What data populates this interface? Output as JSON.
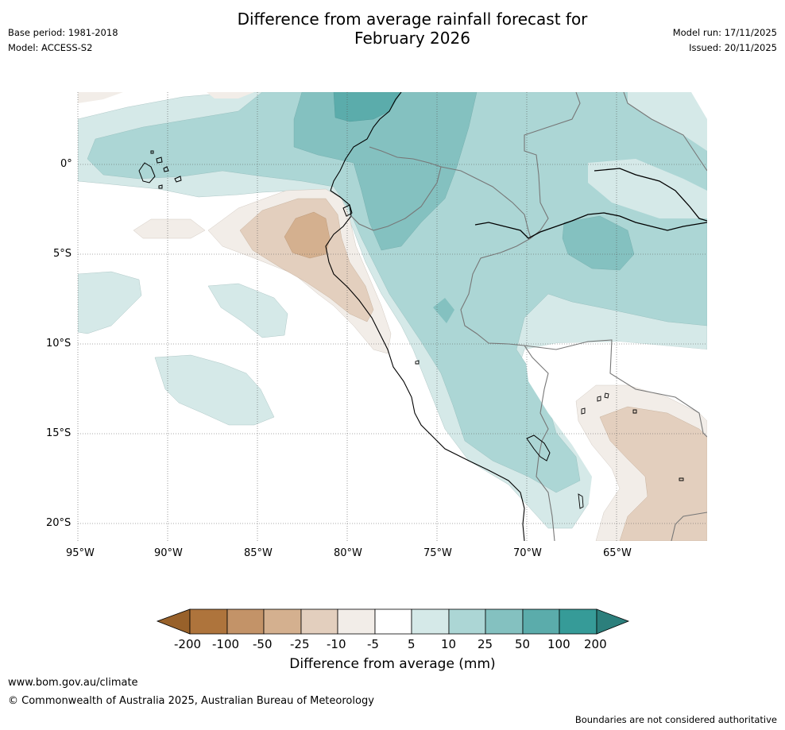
{
  "title": {
    "line1": "Difference from average rainfall forecast for",
    "line2": "February 2026"
  },
  "meta": {
    "base_period": "Base period: 1981-2018",
    "model": "Model: ACCESS-S2",
    "model_run": "Model run: 17/11/2025",
    "issued": "Issued: 20/11/2025"
  },
  "map": {
    "region": "Western South America (Peru, Ecuador)",
    "lat_labels": [
      "0°",
      "5°S",
      "10°S",
      "15°S",
      "20°S"
    ],
    "lon_labels": [
      "95°W",
      "90°W",
      "85°W",
      "80°W",
      "75°W",
      "70°W",
      "65°W"
    ]
  },
  "legend": {
    "title": "Difference from average (mm)",
    "tick_labels": [
      "-200",
      "-100",
      "-50",
      "-25",
      "-10",
      "-5",
      "5",
      "10",
      "25",
      "50",
      "100",
      "200"
    ],
    "colors": [
      "#98612a",
      "#ae743c",
      "#c39368",
      "#d4b08f",
      "#e3cfbe",
      "#f2ede8",
      "#ffffff",
      "#d5e9e8",
      "#acd6d5",
      "#84c1c0",
      "#5bacab",
      "#369b98",
      "#2c7f7c"
    ]
  },
  "footer": {
    "url": "www.bom.gov.au/climate",
    "copyright": "© Commonwealth of Australia 2025, Australian Bureau of Meteorology",
    "note": "Boundaries are not considered authoritative"
  }
}
